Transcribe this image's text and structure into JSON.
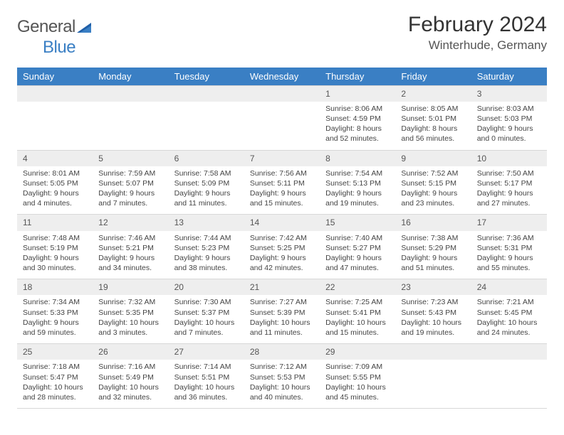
{
  "logo": {
    "word1": "General",
    "word2": "Blue"
  },
  "title": "February 2024",
  "location": "Winterhude, Germany",
  "colors": {
    "header_bg": "#3a7fc4",
    "header_text": "#ffffff",
    "daynum_bg": "#eeeeee",
    "border": "#d0d0d0",
    "text": "#444444"
  },
  "weekdays": [
    "Sunday",
    "Monday",
    "Tuesday",
    "Wednesday",
    "Thursday",
    "Friday",
    "Saturday"
  ],
  "weeks": [
    {
      "nums": [
        "",
        "",
        "",
        "",
        "1",
        "2",
        "3"
      ],
      "cells": [
        null,
        null,
        null,
        null,
        {
          "sunrise": "Sunrise: 8:06 AM",
          "sunset": "Sunset: 4:59 PM",
          "day1": "Daylight: 8 hours",
          "day2": "and 52 minutes."
        },
        {
          "sunrise": "Sunrise: 8:05 AM",
          "sunset": "Sunset: 5:01 PM",
          "day1": "Daylight: 8 hours",
          "day2": "and 56 minutes."
        },
        {
          "sunrise": "Sunrise: 8:03 AM",
          "sunset": "Sunset: 5:03 PM",
          "day1": "Daylight: 9 hours",
          "day2": "and 0 minutes."
        }
      ]
    },
    {
      "nums": [
        "4",
        "5",
        "6",
        "7",
        "8",
        "9",
        "10"
      ],
      "cells": [
        {
          "sunrise": "Sunrise: 8:01 AM",
          "sunset": "Sunset: 5:05 PM",
          "day1": "Daylight: 9 hours",
          "day2": "and 4 minutes."
        },
        {
          "sunrise": "Sunrise: 7:59 AM",
          "sunset": "Sunset: 5:07 PM",
          "day1": "Daylight: 9 hours",
          "day2": "and 7 minutes."
        },
        {
          "sunrise": "Sunrise: 7:58 AM",
          "sunset": "Sunset: 5:09 PM",
          "day1": "Daylight: 9 hours",
          "day2": "and 11 minutes."
        },
        {
          "sunrise": "Sunrise: 7:56 AM",
          "sunset": "Sunset: 5:11 PM",
          "day1": "Daylight: 9 hours",
          "day2": "and 15 minutes."
        },
        {
          "sunrise": "Sunrise: 7:54 AM",
          "sunset": "Sunset: 5:13 PM",
          "day1": "Daylight: 9 hours",
          "day2": "and 19 minutes."
        },
        {
          "sunrise": "Sunrise: 7:52 AM",
          "sunset": "Sunset: 5:15 PM",
          "day1": "Daylight: 9 hours",
          "day2": "and 23 minutes."
        },
        {
          "sunrise": "Sunrise: 7:50 AM",
          "sunset": "Sunset: 5:17 PM",
          "day1": "Daylight: 9 hours",
          "day2": "and 27 minutes."
        }
      ]
    },
    {
      "nums": [
        "11",
        "12",
        "13",
        "14",
        "15",
        "16",
        "17"
      ],
      "cells": [
        {
          "sunrise": "Sunrise: 7:48 AM",
          "sunset": "Sunset: 5:19 PM",
          "day1": "Daylight: 9 hours",
          "day2": "and 30 minutes."
        },
        {
          "sunrise": "Sunrise: 7:46 AM",
          "sunset": "Sunset: 5:21 PM",
          "day1": "Daylight: 9 hours",
          "day2": "and 34 minutes."
        },
        {
          "sunrise": "Sunrise: 7:44 AM",
          "sunset": "Sunset: 5:23 PM",
          "day1": "Daylight: 9 hours",
          "day2": "and 38 minutes."
        },
        {
          "sunrise": "Sunrise: 7:42 AM",
          "sunset": "Sunset: 5:25 PM",
          "day1": "Daylight: 9 hours",
          "day2": "and 42 minutes."
        },
        {
          "sunrise": "Sunrise: 7:40 AM",
          "sunset": "Sunset: 5:27 PM",
          "day1": "Daylight: 9 hours",
          "day2": "and 47 minutes."
        },
        {
          "sunrise": "Sunrise: 7:38 AM",
          "sunset": "Sunset: 5:29 PM",
          "day1": "Daylight: 9 hours",
          "day2": "and 51 minutes."
        },
        {
          "sunrise": "Sunrise: 7:36 AM",
          "sunset": "Sunset: 5:31 PM",
          "day1": "Daylight: 9 hours",
          "day2": "and 55 minutes."
        }
      ]
    },
    {
      "nums": [
        "18",
        "19",
        "20",
        "21",
        "22",
        "23",
        "24"
      ],
      "cells": [
        {
          "sunrise": "Sunrise: 7:34 AM",
          "sunset": "Sunset: 5:33 PM",
          "day1": "Daylight: 9 hours",
          "day2": "and 59 minutes."
        },
        {
          "sunrise": "Sunrise: 7:32 AM",
          "sunset": "Sunset: 5:35 PM",
          "day1": "Daylight: 10 hours",
          "day2": "and 3 minutes."
        },
        {
          "sunrise": "Sunrise: 7:30 AM",
          "sunset": "Sunset: 5:37 PM",
          "day1": "Daylight: 10 hours",
          "day2": "and 7 minutes."
        },
        {
          "sunrise": "Sunrise: 7:27 AM",
          "sunset": "Sunset: 5:39 PM",
          "day1": "Daylight: 10 hours",
          "day2": "and 11 minutes."
        },
        {
          "sunrise": "Sunrise: 7:25 AM",
          "sunset": "Sunset: 5:41 PM",
          "day1": "Daylight: 10 hours",
          "day2": "and 15 minutes."
        },
        {
          "sunrise": "Sunrise: 7:23 AM",
          "sunset": "Sunset: 5:43 PM",
          "day1": "Daylight: 10 hours",
          "day2": "and 19 minutes."
        },
        {
          "sunrise": "Sunrise: 7:21 AM",
          "sunset": "Sunset: 5:45 PM",
          "day1": "Daylight: 10 hours",
          "day2": "and 24 minutes."
        }
      ]
    },
    {
      "nums": [
        "25",
        "26",
        "27",
        "28",
        "29",
        "",
        ""
      ],
      "cells": [
        {
          "sunrise": "Sunrise: 7:18 AM",
          "sunset": "Sunset: 5:47 PM",
          "day1": "Daylight: 10 hours",
          "day2": "and 28 minutes."
        },
        {
          "sunrise": "Sunrise: 7:16 AM",
          "sunset": "Sunset: 5:49 PM",
          "day1": "Daylight: 10 hours",
          "day2": "and 32 minutes."
        },
        {
          "sunrise": "Sunrise: 7:14 AM",
          "sunset": "Sunset: 5:51 PM",
          "day1": "Daylight: 10 hours",
          "day2": "and 36 minutes."
        },
        {
          "sunrise": "Sunrise: 7:12 AM",
          "sunset": "Sunset: 5:53 PM",
          "day1": "Daylight: 10 hours",
          "day2": "and 40 minutes."
        },
        {
          "sunrise": "Sunrise: 7:09 AM",
          "sunset": "Sunset: 5:55 PM",
          "day1": "Daylight: 10 hours",
          "day2": "and 45 minutes."
        },
        null,
        null
      ]
    }
  ]
}
